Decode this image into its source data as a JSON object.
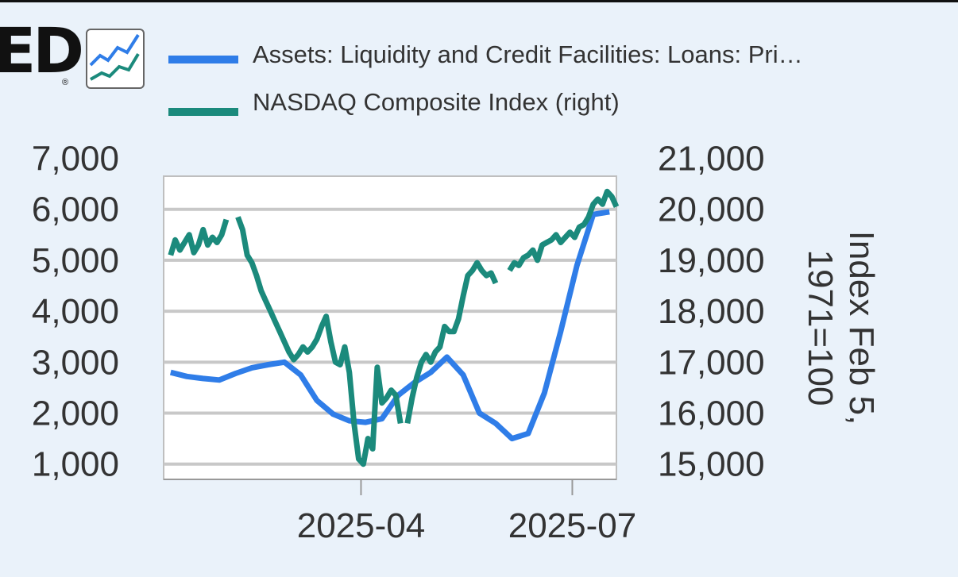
{
  "logo": {
    "text": "ED",
    "registered": "®",
    "icon": "line-chart-icon"
  },
  "chart_data": {
    "type": "line",
    "grid": true,
    "legend_placement": "top",
    "x_ticks": [
      "2025-04",
      "2025-07"
    ],
    "left_axis": {
      "ticks": [
        "1,000",
        "2,000",
        "3,000",
        "4,000",
        "5,000",
        "6,000",
        "7,000"
      ],
      "ylim": [
        700,
        6650
      ]
    },
    "right_axis": {
      "ticks": [
        "15,000",
        "16,000",
        "17,000",
        "18,000",
        "19,000",
        "20,000",
        "21,000"
      ],
      "ylim": [
        14700,
        20650
      ],
      "label": "Index Feb 5, 1971=100"
    },
    "series": [
      {
        "name": "Assets: Liquidity and Credit Facilities: Loans: Pri…",
        "color": "#2f7de8",
        "axis": "left",
        "points": [
          [
            "2025-01-09",
            2800
          ],
          [
            "2025-01-16",
            2720
          ],
          [
            "2025-01-23",
            2680
          ],
          [
            "2025-01-30",
            2650
          ],
          [
            "2025-02-06",
            2780
          ],
          [
            "2025-02-13",
            2890
          ],
          [
            "2025-02-20",
            2950
          ],
          [
            "2025-02-27",
            3000
          ],
          [
            "2025-03-06",
            2750
          ],
          [
            "2025-03-13",
            2250
          ],
          [
            "2025-03-20",
            1980
          ],
          [
            "2025-03-27",
            1850
          ],
          [
            "2025-04-03",
            1820
          ],
          [
            "2025-04-10",
            1890
          ],
          [
            "2025-04-17",
            2350
          ],
          [
            "2025-04-24",
            2600
          ],
          [
            "2025-05-01",
            2800
          ],
          [
            "2025-05-08",
            3100
          ],
          [
            "2025-05-15",
            2750
          ],
          [
            "2025-05-22",
            2000
          ],
          [
            "2025-05-29",
            1800
          ],
          [
            "2025-06-05",
            1500
          ],
          [
            "2025-06-12",
            1600
          ],
          [
            "2025-06-19",
            2400
          ],
          [
            "2025-06-26",
            3600
          ],
          [
            "2025-07-03",
            4900
          ],
          [
            "2025-07-10",
            5900
          ],
          [
            "2025-07-17",
            5950
          ]
        ]
      },
      {
        "name": "NASDAQ Composite Index (right)",
        "color": "#1b8a7c",
        "axis": "right",
        "segments": [
          [
            [
              "2025-01-09",
              19100
            ],
            [
              "2025-01-11",
              19400
            ],
            [
              "2025-01-13",
              19200
            ],
            [
              "2025-01-15",
              19350
            ],
            [
              "2025-01-17",
              19500
            ],
            [
              "2025-01-19",
              19150
            ],
            [
              "2025-01-21",
              19300
            ],
            [
              "2025-01-23",
              19600
            ],
            [
              "2025-01-25",
              19300
            ],
            [
              "2025-01-27",
              19450
            ],
            [
              "2025-01-29",
              19350
            ],
            [
              "2025-01-31",
              19500
            ],
            [
              "2025-02-02",
              19800
            ]
          ],
          [
            [
              "2025-02-07",
              19850
            ],
            [
              "2025-02-09",
              19600
            ],
            [
              "2025-02-11",
              19100
            ],
            [
              "2025-02-13",
              18950
            ],
            [
              "2025-02-15",
              18700
            ],
            [
              "2025-02-17",
              18400
            ],
            [
              "2025-02-19",
              18200
            ],
            [
              "2025-02-21",
              18000
            ],
            [
              "2025-02-23",
              17800
            ],
            [
              "2025-02-25",
              17600
            ],
            [
              "2025-02-27",
              17400
            ],
            [
              "2025-03-01",
              17200
            ],
            [
              "2025-03-03",
              17050
            ],
            [
              "2025-03-05",
              17150
            ],
            [
              "2025-03-07",
              17300
            ],
            [
              "2025-03-09",
              17200
            ],
            [
              "2025-03-11",
              17300
            ],
            [
              "2025-03-13",
              17450
            ],
            [
              "2025-03-15",
              17700
            ],
            [
              "2025-03-17",
              17900
            ],
            [
              "2025-03-19",
              17400
            ],
            [
              "2025-03-21",
              17000
            ],
            [
              "2025-03-23",
              16950
            ],
            [
              "2025-03-25",
              17300
            ],
            [
              "2025-03-27",
              16800
            ],
            [
              "2025-03-29",
              15800
            ],
            [
              "2025-03-31",
              15100
            ],
            [
              "2025-04-02",
              15000
            ],
            [
              "2025-04-04",
              15500
            ],
            [
              "2025-04-06",
              15300
            ],
            [
              "2025-04-08",
              16900
            ],
            [
              "2025-04-10",
              16200
            ],
            [
              "2025-04-12",
              16300
            ],
            [
              "2025-04-14",
              16450
            ],
            [
              "2025-04-16",
              16350
            ],
            [
              "2025-04-18",
              15800
            ]
          ],
          [
            [
              "2025-04-21",
              15800
            ],
            [
              "2025-04-23",
              16300
            ],
            [
              "2025-04-25",
              16700
            ],
            [
              "2025-04-27",
              17000
            ],
            [
              "2025-04-29",
              17150
            ],
            [
              "2025-05-01",
              17000
            ],
            [
              "2025-05-03",
              17200
            ],
            [
              "2025-05-05",
              17300
            ],
            [
              "2025-05-07",
              17700
            ],
            [
              "2025-05-09",
              17600
            ],
            [
              "2025-05-11",
              17600
            ],
            [
              "2025-05-13",
              17850
            ],
            [
              "2025-05-15",
              18300
            ],
            [
              "2025-05-17",
              18700
            ],
            [
              "2025-05-19",
              18800
            ],
            [
              "2025-05-21",
              18950
            ],
            [
              "2025-05-23",
              18800
            ],
            [
              "2025-05-25",
              18700
            ],
            [
              "2025-05-27",
              18750
            ],
            [
              "2025-05-29",
              18550
            ]
          ],
          [
            [
              "2025-06-04",
              18800
            ],
            [
              "2025-06-06",
              18950
            ],
            [
              "2025-06-08",
              18900
            ],
            [
              "2025-06-10",
              19050
            ],
            [
              "2025-06-12",
              19100
            ],
            [
              "2025-06-14",
              19200
            ],
            [
              "2025-06-16",
              19000
            ],
            [
              "2025-06-18",
              19300
            ],
            [
              "2025-06-20",
              19350
            ],
            [
              "2025-06-22",
              19400
            ],
            [
              "2025-06-24",
              19500
            ],
            [
              "2025-06-26",
              19350
            ],
            [
              "2025-06-28",
              19450
            ],
            [
              "2025-06-30",
              19550
            ],
            [
              "2025-07-02",
              19450
            ],
            [
              "2025-07-04",
              19650
            ],
            [
              "2025-07-06",
              19700
            ],
            [
              "2025-07-08",
              19850
            ],
            [
              "2025-07-10",
              20100
            ],
            [
              "2025-07-12",
              20200
            ],
            [
              "2025-07-14",
              20100
            ],
            [
              "2025-07-16",
              20350
            ],
            [
              "2025-07-18",
              20250
            ],
            [
              "2025-07-20",
              20050
            ]
          ]
        ]
      }
    ]
  }
}
